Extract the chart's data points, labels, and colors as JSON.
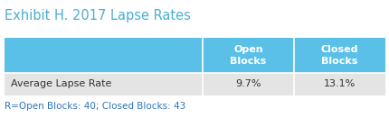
{
  "title": "Exhibit H. 2017 Lapse Rates",
  "title_color": "#4BAED4",
  "title_fontsize": 10.5,
  "col_headers": [
    "Open\nBlocks",
    "Closed\nBlocks"
  ],
  "row_labels": [
    "Average Lapse Rate"
  ],
  "values": [
    [
      "9.7%",
      "13.1%"
    ]
  ],
  "footer": "R=Open Blocks: 40; Closed Blocks: 43",
  "footer_color": "#2E75B6",
  "header_bg": "#5BC0E8",
  "header_text_color": "#FFFFFF",
  "row_bg": "#E4E4E4",
  "row_label_color": "#333333",
  "value_color": "#333333",
  "background_color": "#FFFFFF",
  "header_fontsize": 8.0,
  "row_fontsize": 8.0,
  "footer_fontsize": 7.5
}
